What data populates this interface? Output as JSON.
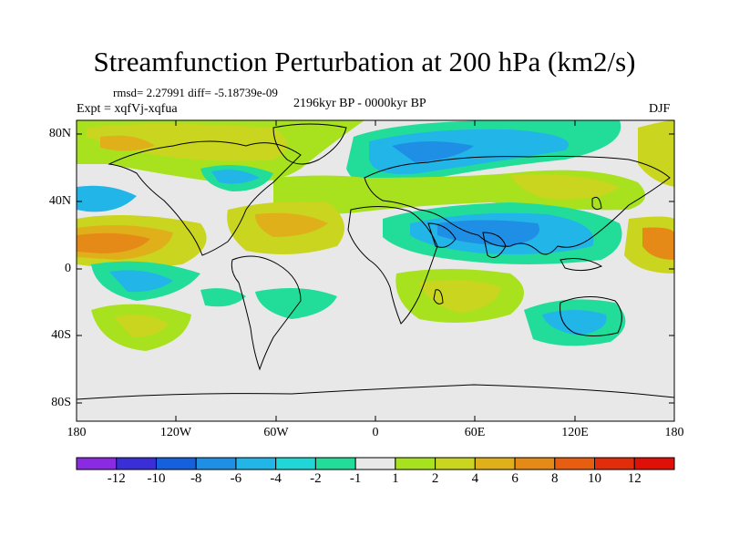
{
  "title": "Streamfunction Perturbation at 200 hPa (km2/s)",
  "stats": "rmsd= 2.27991 diff= -5.18739e-09",
  "experiment": "Expt = xqfVj-xqfua",
  "period": "2196kyr BP - 0000kyr BP",
  "season": "DJF",
  "lat_labels": [
    "80N",
    "40N",
    "0",
    "40S",
    "80S"
  ],
  "lon_labels": [
    "180",
    "120W",
    "60W",
    "0",
    "60E",
    "120E",
    "180"
  ],
  "colorbar": {
    "labels": [
      "-12",
      "-10",
      "-8",
      "-6",
      "-4",
      "-2",
      "-1",
      "1",
      "2",
      "4",
      "6",
      "8",
      "10",
      "12"
    ],
    "colors": [
      "#8a2be2",
      "#3a2fd6",
      "#1560dd",
      "#1f8fe6",
      "#22b5e8",
      "#20d6d6",
      "#22dd9a",
      "#e8e8e8",
      "#a8e21f",
      "#c9d51e",
      "#e0b01a",
      "#e58a16",
      "#e85e10",
      "#e22d0a",
      "#e00f08"
    ]
  },
  "fields": [
    {
      "label": "arctic band positive",
      "color": "#c9d51e"
    },
    {
      "label": "eurasia-arctic trough",
      "color": "#22b5e8"
    },
    {
      "label": "north pacific high",
      "color": "#e0b01a"
    },
    {
      "label": "subtropical asia low",
      "color": "#1f8fe6"
    },
    {
      "label": "southern indian positive",
      "color": "#c9d51e"
    },
    {
      "label": "australia low",
      "color": "#22b5e8"
    }
  ]
}
